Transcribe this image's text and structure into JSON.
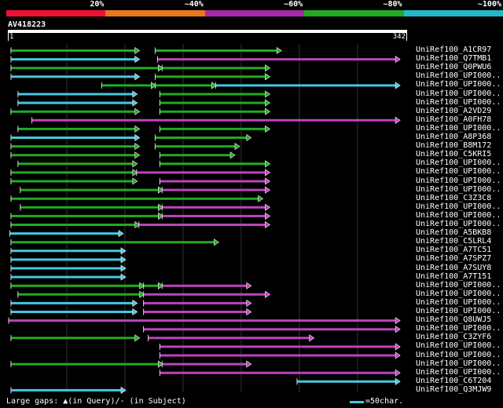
{
  "legend": {
    "colors": [
      "#ee1133",
      "#e8781c",
      "#a62aa6",
      "#22aa22",
      "#22b8c8"
    ],
    "labels": [
      "20%",
      "~40%",
      "~60%",
      "~80%",
      "~100%"
    ]
  },
  "query": {
    "title": "AV418223",
    "start_label": "1",
    "end_label": "342",
    "length": 342
  },
  "colors": {
    "green": "#22aa22",
    "magenta": "#bb44bb",
    "cyan": "#44c8e0",
    "gap": "#bb44bb"
  },
  "hits": [
    {
      "name": "UniRef100_A1CR97",
      "segments": [
        {
          "s": 2,
          "e": 112,
          "c": "green"
        },
        {
          "s": 126,
          "e": 234,
          "c": "green"
        }
      ]
    },
    {
      "name": "UniRef100_Q7TMB1",
      "segments": [
        {
          "s": 2,
          "e": 112,
          "c": "cyan"
        },
        {
          "s": 128,
          "e": 336,
          "c": "magenta"
        }
      ]
    },
    {
      "name": "UniRef100_Q0PWU6",
      "segments": [
        {
          "s": 2,
          "e": 132,
          "c": "green"
        },
        {
          "s": 132,
          "e": 224,
          "c": "green"
        }
      ]
    },
    {
      "name": "UniRef100_UPI000..",
      "segments": [
        {
          "s": 2,
          "e": 112,
          "c": "cyan"
        },
        {
          "s": 126,
          "e": 224,
          "c": "green"
        }
      ]
    },
    {
      "name": "UniRef100_UPI000..",
      "segments": [
        {
          "s": 80,
          "e": 126,
          "c": "green"
        },
        {
          "s": 126,
          "e": 178,
          "c": "green"
        },
        {
          "s": 178,
          "e": 336,
          "c": "cyan"
        }
      ]
    },
    {
      "name": "UniRef100_UPI000..",
      "segments": [
        {
          "s": 8,
          "e": 110,
          "c": "cyan"
        },
        {
          "s": 130,
          "e": 224,
          "c": "green"
        }
      ]
    },
    {
      "name": "UniRef100_UPI000..",
      "segments": [
        {
          "s": 8,
          "e": 110,
          "c": "cyan"
        },
        {
          "s": 130,
          "e": 224,
          "c": "green"
        }
      ]
    },
    {
      "name": "UniRef100_A2VD29",
      "segments": [
        {
          "s": 2,
          "e": 112,
          "c": "green"
        },
        {
          "s": 130,
          "e": 224,
          "c": "green"
        }
      ]
    },
    {
      "name": "UniRef100_A0FH78",
      "segments": [
        {
          "s": 20,
          "e": 336,
          "c": "magenta"
        }
      ]
    },
    {
      "name": "UniRef100_UPI000..",
      "segments": [
        {
          "s": 8,
          "e": 112,
          "c": "green"
        },
        {
          "s": 130,
          "e": 224,
          "c": "green"
        }
      ]
    },
    {
      "name": "UniRef100_A8P368",
      "segments": [
        {
          "s": 2,
          "e": 112,
          "c": "cyan"
        },
        {
          "s": 126,
          "e": 208,
          "c": "green"
        }
      ]
    },
    {
      "name": "UniRef100_B8M172",
      "segments": [
        {
          "s": 2,
          "e": 112,
          "c": "green"
        },
        {
          "s": 126,
          "e": 198,
          "c": "green"
        }
      ]
    },
    {
      "name": "UniRef100_C5KRI5",
      "segments": [
        {
          "s": 2,
          "e": 112,
          "c": "green"
        },
        {
          "s": 130,
          "e": 194,
          "c": "green"
        }
      ]
    },
    {
      "name": "UniRef100_UPI000..",
      "segments": [
        {
          "s": 8,
          "e": 110,
          "c": "green"
        },
        {
          "s": 130,
          "e": 224,
          "c": "green"
        }
      ]
    },
    {
      "name": "UniRef100_UPI000..",
      "segments": [
        {
          "s": 2,
          "e": 110,
          "c": "green"
        },
        {
          "s": 110,
          "e": 224,
          "c": "magenta"
        }
      ]
    },
    {
      "name": "UniRef100_UPI000..",
      "segments": [
        {
          "s": 2,
          "e": 110,
          "c": "green"
        },
        {
          "s": 130,
          "e": 224,
          "c": "magenta"
        }
      ]
    },
    {
      "name": "UniRef100_UPI000..",
      "segments": [
        {
          "s": 10,
          "e": 132,
          "c": "green"
        },
        {
          "s": 132,
          "e": 224,
          "c": "magenta"
        }
      ]
    },
    {
      "name": "UniRef100_C3Z3C8",
      "segments": [
        {
          "s": 2,
          "e": 218,
          "c": "green"
        }
      ]
    },
    {
      "name": "UniRef100_UPI000..",
      "segments": [
        {
          "s": 10,
          "e": 132,
          "c": "green"
        },
        {
          "s": 132,
          "e": 224,
          "c": "magenta"
        }
      ]
    },
    {
      "name": "UniRef100_UPI000..",
      "segments": [
        {
          "s": 2,
          "e": 132,
          "c": "green"
        },
        {
          "s": 132,
          "e": 224,
          "c": "magenta"
        }
      ]
    },
    {
      "name": "UniRef100_UPI000..",
      "segments": [
        {
          "s": 2,
          "e": 112,
          "c": "green"
        },
        {
          "s": 112,
          "e": 224,
          "c": "magenta"
        }
      ]
    },
    {
      "name": "UniRef100_A5BKB8",
      "segments": [
        {
          "s": 1,
          "e": 98,
          "c": "cyan"
        }
      ]
    },
    {
      "name": "UniRef100_C5LRL4",
      "segments": [
        {
          "s": 2,
          "e": 180,
          "c": "green"
        }
      ]
    },
    {
      "name": "UniRef100_A7TC51",
      "segments": [
        {
          "s": 2,
          "e": 100,
          "c": "cyan"
        }
      ]
    },
    {
      "name": "UniRef100_A7SPZ7",
      "segments": [
        {
          "s": 2,
          "e": 100,
          "c": "cyan"
        }
      ]
    },
    {
      "name": "UniRef100_A7SUY8",
      "segments": [
        {
          "s": 2,
          "e": 100,
          "c": "cyan"
        }
      ]
    },
    {
      "name": "UniRef100_A7T151",
      "segments": [
        {
          "s": 2,
          "e": 100,
          "c": "cyan"
        }
      ]
    },
    {
      "name": "UniRef100_UPI000..",
      "segments": [
        {
          "s": 2,
          "e": 116,
          "c": "green"
        },
        {
          "s": 116,
          "e": 132,
          "c": "green"
        },
        {
          "s": 132,
          "e": 208,
          "c": "magenta"
        }
      ]
    },
    {
      "name": "UniRef100_UPI000..",
      "segments": [
        {
          "s": 8,
          "e": 116,
          "c": "green"
        },
        {
          "s": 116,
          "e": 224,
          "c": "magenta"
        }
      ]
    },
    {
      "name": "UniRef100_UPI000..",
      "segments": [
        {
          "s": 2,
          "e": 110,
          "c": "cyan"
        },
        {
          "s": 116,
          "e": 208,
          "c": "magenta"
        }
      ]
    },
    {
      "name": "UniRef100_UPI000..",
      "segments": [
        {
          "s": 2,
          "e": 110,
          "c": "cyan"
        },
        {
          "s": 116,
          "e": 208,
          "c": "magenta"
        }
      ]
    },
    {
      "name": "UniRef100_Q8UWJ5",
      "segments": [
        {
          "s": 0,
          "e": 336,
          "c": "magenta"
        }
      ]
    },
    {
      "name": "UniRef100_UPI000..",
      "segments": [
        {
          "s": 116,
          "e": 336,
          "c": "magenta"
        }
      ]
    },
    {
      "name": "UniRef100_C3ZYF6",
      "segments": [
        {
          "s": 2,
          "e": 112,
          "c": "green"
        },
        {
          "s": 120,
          "e": 262,
          "c": "magenta"
        }
      ]
    },
    {
      "name": "UniRef100_UPI000..",
      "segments": [
        {
          "s": 130,
          "e": 336,
          "c": "magenta"
        }
      ]
    },
    {
      "name": "UniRef100_UPI000..",
      "segments": [
        {
          "s": 130,
          "e": 336,
          "c": "magenta"
        }
      ]
    },
    {
      "name": "UniRef100_UPI000..",
      "segments": [
        {
          "s": 2,
          "e": 132,
          "c": "green"
        },
        {
          "s": 132,
          "e": 208,
          "c": "magenta"
        }
      ]
    },
    {
      "name": "UniRef100_UPI000..",
      "segments": [
        {
          "s": 130,
          "e": 336,
          "c": "magenta"
        }
      ]
    },
    {
      "name": "UniRef100_C6T204",
      "segments": [
        {
          "s": 248,
          "e": 336,
          "c": "cyan"
        }
      ]
    },
    {
      "name": "UniRef100_Q3MJW9",
      "segments": [
        {
          "s": 2,
          "e": 100,
          "c": "cyan"
        }
      ]
    }
  ],
  "footer": {
    "note": "Large gaps: ▲(in Query)/- (in Subject)",
    "scale_label": "=50char."
  }
}
